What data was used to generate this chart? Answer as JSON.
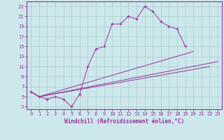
{
  "xlabel": "Windchill (Refroidissement éolien,°C)",
  "background_color": "#cce8ec",
  "grid_color": "#aacccc",
  "line_color": "#993399",
  "xlim": [
    -0.5,
    23.5
  ],
  "ylim": [
    2.5,
    24
  ],
  "xticks": [
    0,
    1,
    2,
    3,
    4,
    5,
    6,
    7,
    8,
    9,
    10,
    11,
    12,
    13,
    14,
    15,
    16,
    17,
    18,
    19,
    20,
    21,
    22,
    23
  ],
  "yticks": [
    3,
    5,
    7,
    9,
    11,
    13,
    15,
    17,
    19,
    21,
    23
  ],
  "curve1_x": [
    0,
    1,
    2,
    3,
    4,
    5,
    6,
    7,
    8,
    9,
    10,
    11,
    12,
    13,
    14,
    15,
    16,
    17,
    18,
    19
  ],
  "curve1_y": [
    6,
    5,
    4.5,
    5,
    4.5,
    3,
    5.5,
    11,
    14.5,
    15,
    19.5,
    19.5,
    21,
    20.5,
    23,
    22,
    20,
    19,
    18.5,
    15
  ],
  "line2_x": [
    0,
    1,
    23
  ],
  "line2_y": [
    6,
    5,
    12
  ],
  "line3_x": [
    0,
    1,
    20
  ],
  "line3_y": [
    6,
    5,
    14
  ],
  "line4_x": [
    0,
    1,
    22
  ],
  "line4_y": [
    6,
    5,
    11
  ],
  "xlabel_fontsize": 5.5,
  "tick_fontsize": 5.0
}
